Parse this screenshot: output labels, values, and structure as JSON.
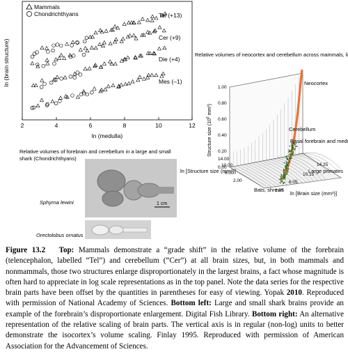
{
  "scatter_panel": {
    "legend": [
      {
        "marker": "triangle",
        "label": "Mammals"
      },
      {
        "marker": "circle",
        "label": "Chondrichthyans"
      }
    ],
    "series_labels": [
      "Tel (+13)",
      "Cer (+9)",
      "Die (+4)",
      "Mes (–1)"
    ],
    "xlabel": "ln (medulla)",
    "ylabel": "ln (brain structure)",
    "xticks": [
      "2",
      "4",
      "6",
      "8",
      "10",
      "12"
    ]
  },
  "chart_data": {
    "type": "scatter",
    "xlabel": "ln (medulla)",
    "ylabel": "ln (brain structure)",
    "xlim": [
      2,
      12
    ],
    "xticks": [
      2,
      4,
      6,
      8,
      10,
      12
    ],
    "series": [
      {
        "name": "Tel (+13)",
        "start": [
          2.6,
          16.0
        ],
        "end": [
          10.3,
          25.0
        ]
      },
      {
        "name": "Cer (+9)",
        "start": [
          2.6,
          13.0
        ],
        "end": [
          10.3,
          21.5
        ]
      },
      {
        "name": "Die (+4)",
        "start": [
          2.6,
          8.5
        ],
        "end": [
          10.3,
          16.5
        ]
      },
      {
        "name": "Mes (–1)",
        "start": [
          2.6,
          3.5
        ],
        "end": [
          10.3,
          11.0
        ]
      }
    ]
  },
  "surface_panel": {
    "title": "Relative volumes of neocortex and cerebellum across mammals, linear scale",
    "zlabel_pre": "Structure size (10",
    "zlabel_sup": "6",
    "zlabel_post": " mm³)",
    "zticks": [
      "0.00",
      "0.20",
      "0.40",
      "0.60",
      "0.80",
      "1.00"
    ],
    "left_ticks": [
      "14.00",
      "10.00",
      "6.00",
      "2.00"
    ],
    "right_ticks": [
      "14.25",
      "10.15",
      "6.05",
      "1.95"
    ],
    "left_axis_label": "ln [Structure size (mm³)]",
    "right_axis_label": "ln [Brain size (mm³)]",
    "annotations": {
      "neocortex": "Neocortex",
      "cerebellum": "Cerebellum",
      "basal": "Basal forebrain and medulla",
      "large_primates": "Large primates",
      "bats": "Bats, shrews"
    },
    "colors": {
      "neocortex": "#e87433",
      "cerebellum": "#2f6b2a"
    }
  },
  "shark_panel": {
    "title": "Relative volumes of forebrain and cerebellum in a large and small shark (Chondrichthyans)",
    "species": [
      "Sphyrna lewini",
      "Orectolobus ornatus"
    ],
    "scale_bar": "1 cm"
  },
  "caption": {
    "figure_label": "Figure 13.2",
    "p1_bold": "Top:",
    "p1": " Mammals demonstrate a “grade shift” in the relative volume of the forebrain (telencephalon, labelled “Tel”) and cerebellum (“Cer”) at all brain sizes, but, in both mammals and nonmammals, those two structures enlarge disproportionately in the largest brains, a fact whose magnitude is often hard to appreciate in log scale representations as in the top panel. Note the data series for the respective brain parts have been offset by the quantities in parentheses for easy of viewing. Yopak ",
    "p1_year": "2010",
    "p1_end": ". Reproduced with permission of National Academy of Sciences. ",
    "p2_bold": "Bottom left:",
    "p2": " Large and small shark brains provide an example of the forebrain’s disproportionate enlargement. Digital Fish Library. ",
    "p3_bold": "Bottom right:",
    "p3": " An alternative representation of the relative scaling of brain parts. The vertical axis is in regular (non-log) units to better demonstrate the isocortex’s volume scaling. Finlay 1995. Reproduced with permission of American Association for the Advancement of Sciences."
  }
}
